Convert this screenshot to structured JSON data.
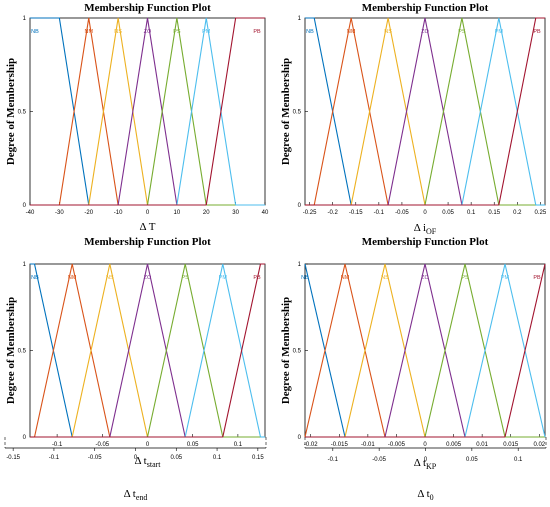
{
  "chart_data": [
    {
      "type": "line",
      "title": "Membership Function Plot",
      "xlabel_main": "Δ T",
      "xlabel_sub": "",
      "ylabel": "Degree of Membership",
      "xlim": [
        -40,
        40
      ],
      "ylim": [
        0,
        1
      ],
      "xticks": [
        "-40",
        "-30",
        "-20",
        "-10",
        "0",
        "10",
        "20",
        "30",
        "40"
      ],
      "yticks": [
        "0",
        "0.5",
        "1"
      ],
      "series": [
        {
          "name": "NB",
          "color": "#0072BD",
          "x": [
            -40,
            -30,
            -20
          ],
          "y": [
            1,
            1,
            0
          ]
        },
        {
          "name": "NM",
          "color": "#D95319",
          "x": [
            -30,
            -20,
            -10
          ],
          "y": [
            0,
            1,
            0
          ]
        },
        {
          "name": "NS",
          "color": "#EDB120",
          "x": [
            -20,
            -10,
            0
          ],
          "y": [
            0,
            1,
            0
          ]
        },
        {
          "name": "ZO",
          "color": "#7E2F8E",
          "x": [
            -10,
            0,
            10
          ],
          "y": [
            0,
            1,
            0
          ]
        },
        {
          "name": "PS",
          "color": "#77AC30",
          "x": [
            0,
            10,
            20
          ],
          "y": [
            0,
            1,
            0
          ]
        },
        {
          "name": "PM",
          "color": "#4DBEEE",
          "x": [
            10,
            20,
            30
          ],
          "y": [
            0,
            1,
            0
          ]
        },
        {
          "name": "PB",
          "color": "#A2142F",
          "x": [
            20,
            30,
            40
          ],
          "y": [
            0,
            1,
            1
          ]
        }
      ]
    },
    {
      "type": "line",
      "title": "Membership Function Plot",
      "xlabel_main": "Δ i",
      "xlabel_sub": "OF",
      "ylabel": "Degree of Membership",
      "xlim": [
        -0.26,
        0.26
      ],
      "ylim": [
        0,
        1
      ],
      "xticks": [
        "-0.25",
        "-0.2",
        "-0.15",
        "-0.1",
        "-0.05",
        "0",
        "0.05",
        "0.1",
        "0.15",
        "0.2",
        "0.25"
      ],
      "yticks": [
        "0",
        "0.5",
        "1"
      ],
      "series": [
        {
          "name": "NB",
          "color": "#0072BD",
          "x": [
            -0.26,
            -0.24,
            -0.16
          ],
          "y": [
            1,
            1,
            0
          ]
        },
        {
          "name": "NM",
          "color": "#D95319",
          "x": [
            -0.24,
            -0.16,
            -0.08
          ],
          "y": [
            0,
            1,
            0
          ]
        },
        {
          "name": "NS",
          "color": "#EDB120",
          "x": [
            -0.16,
            -0.08,
            0
          ],
          "y": [
            0,
            1,
            0
          ]
        },
        {
          "name": "ZO",
          "color": "#7E2F8E",
          "x": [
            -0.08,
            0,
            0.08
          ],
          "y": [
            0,
            1,
            0
          ]
        },
        {
          "name": "PS",
          "color": "#77AC30",
          "x": [
            0,
            0.08,
            0.16
          ],
          "y": [
            0,
            1,
            0
          ]
        },
        {
          "name": "PM",
          "color": "#4DBEEE",
          "x": [
            0.08,
            0.16,
            0.24
          ],
          "y": [
            0,
            1,
            0
          ]
        },
        {
          "name": "PB",
          "color": "#A2142F",
          "x": [
            0.16,
            0.24,
            0.26
          ],
          "y": [
            0,
            1,
            1
          ]
        }
      ]
    },
    {
      "type": "line",
      "title": "Membership Function Plot",
      "xlabel_main": "Δ t",
      "xlabel_sub": "start",
      "ylabel": "Degree of Membership",
      "xlim": [
        -0.13,
        0.13
      ],
      "ylim": [
        0,
        1
      ],
      "xticks": [
        "-0.1",
        "-0.05",
        "0",
        "0.05",
        "0.1"
      ],
      "yticks": [
        "0",
        "0.5",
        "1"
      ],
      "extra_axis": {
        "xlabel_main": "Δ t",
        "xlabel_sub": "end",
        "xlim": [
          -0.16,
          0.16
        ],
        "xticks": [
          "-0.15",
          "-0.1",
          "-0.05",
          "0",
          "0.05",
          "0.1",
          "0.15"
        ]
      },
      "series": [
        {
          "name": "NB",
          "color": "#0072BD",
          "x": [
            -0.13,
            -0.125,
            -0.0833
          ],
          "y": [
            1,
            1,
            0
          ]
        },
        {
          "name": "NM",
          "color": "#D95319",
          "x": [
            -0.125,
            -0.0833,
            -0.0417
          ],
          "y": [
            0,
            1,
            0
          ]
        },
        {
          "name": "NS",
          "color": "#EDB120",
          "x": [
            -0.0833,
            -0.0417,
            0
          ],
          "y": [
            0,
            1,
            0
          ]
        },
        {
          "name": "ZO",
          "color": "#7E2F8E",
          "x": [
            -0.0417,
            0,
            0.0417
          ],
          "y": [
            0,
            1,
            0
          ]
        },
        {
          "name": "PS",
          "color": "#77AC30",
          "x": [
            0,
            0.0417,
            0.0833
          ],
          "y": [
            0,
            1,
            0
          ]
        },
        {
          "name": "PM",
          "color": "#4DBEEE",
          "x": [
            0.0417,
            0.0833,
            0.125
          ],
          "y": [
            0,
            1,
            0
          ]
        },
        {
          "name": "PB",
          "color": "#A2142F",
          "x": [
            0.0833,
            0.125,
            0.13
          ],
          "y": [
            0,
            1,
            1
          ]
        }
      ]
    },
    {
      "type": "line",
      "title": "Membership Function Plot",
      "xlabel_main": "Δ t",
      "xlabel_sub": "KP",
      "ylabel": "Degree of Membership",
      "xlim": [
        -0.021,
        0.021
      ],
      "ylim": [
        0,
        1
      ],
      "xticks": [
        "-0.02",
        "-0.015",
        "-0.01",
        "-0.005",
        "0",
        "0.005",
        "0.01",
        "0.015",
        "0.02"
      ],
      "yticks": [
        "0",
        "0.5",
        "1"
      ],
      "extra_axis": {
        "xlabel_main": "Δ t",
        "xlabel_sub": "0",
        "xlim": [
          -0.13,
          0.13
        ],
        "xticks": [
          "-0.1",
          "-0.05",
          "0",
          "0.05",
          "0.1"
        ]
      },
      "series": [
        {
          "name": "NB",
          "color": "#0072BD",
          "x": [
            -0.021,
            -0.014
          ],
          "y": [
            1,
            0
          ]
        },
        {
          "name": "NM",
          "color": "#D95319",
          "x": [
            -0.021,
            -0.014,
            -0.007
          ],
          "y": [
            0,
            1,
            0
          ]
        },
        {
          "name": "NS",
          "color": "#EDB120",
          "x": [
            -0.014,
            -0.007,
            0
          ],
          "y": [
            0,
            1,
            0
          ]
        },
        {
          "name": "ZO",
          "color": "#7E2F8E",
          "x": [
            -0.007,
            0,
            0.007
          ],
          "y": [
            0,
            1,
            0
          ]
        },
        {
          "name": "PS",
          "color": "#77AC30",
          "x": [
            0,
            0.007,
            0.014
          ],
          "y": [
            0,
            1,
            0
          ]
        },
        {
          "name": "PM",
          "color": "#4DBEEE",
          "x": [
            0.007,
            0.014,
            0.021
          ],
          "y": [
            0,
            1,
            0
          ]
        },
        {
          "name": "PB",
          "color": "#A2142F",
          "x": [
            0.014,
            0.021
          ],
          "y": [
            0,
            1
          ]
        }
      ]
    }
  ]
}
